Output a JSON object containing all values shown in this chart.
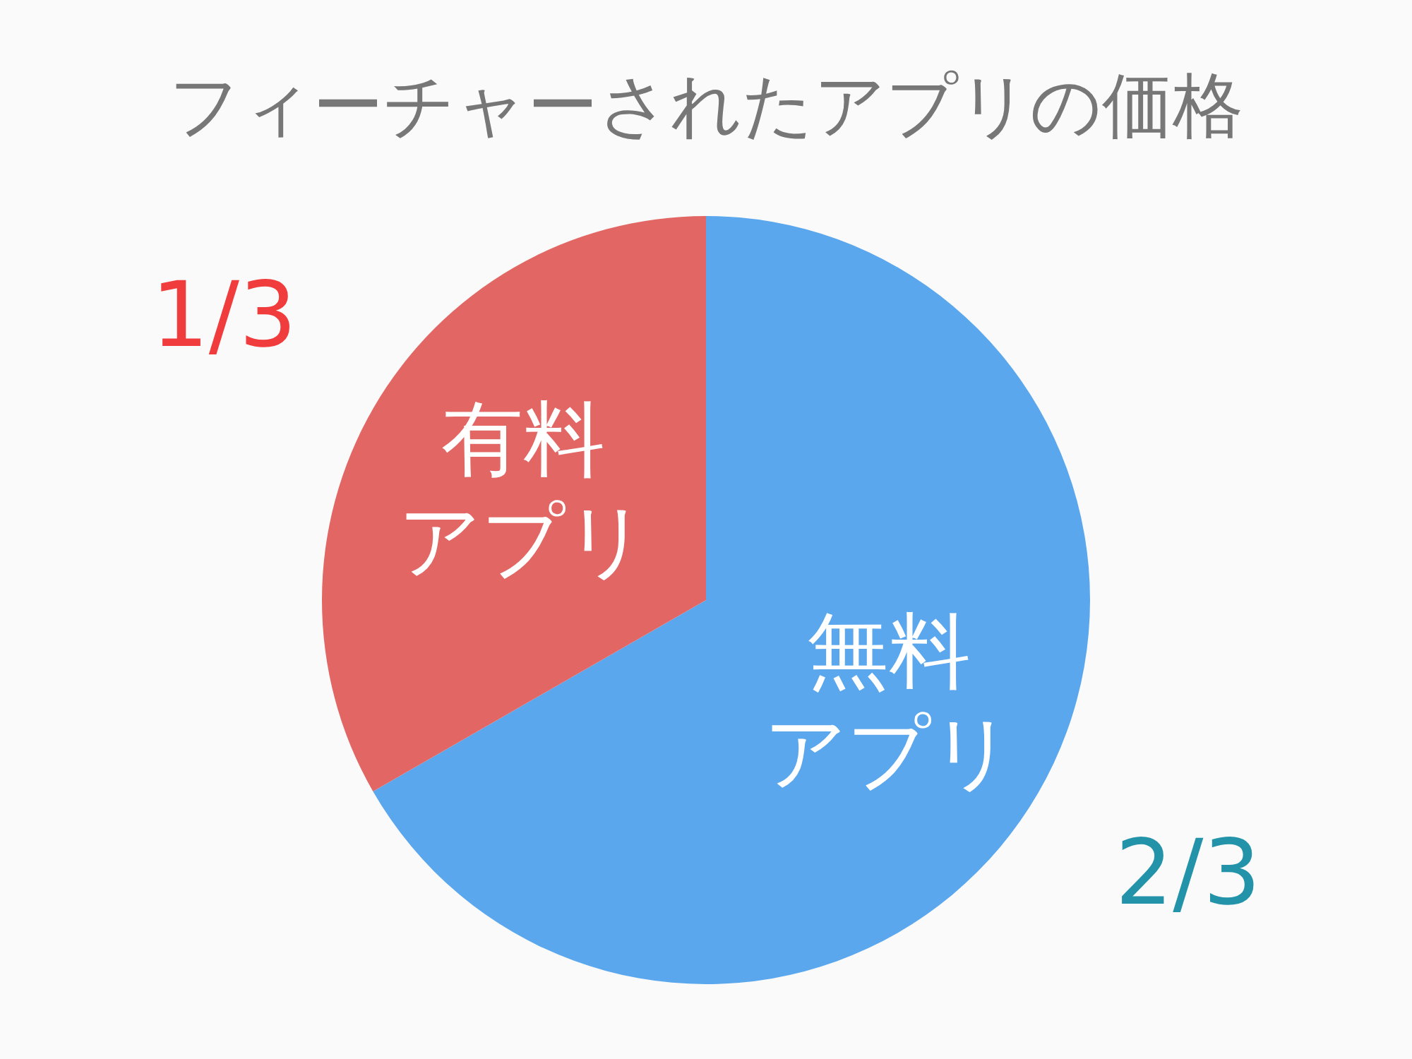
{
  "chart_data": {
    "type": "pie",
    "title": "フィーチャーされたアプリの価格",
    "categories": [
      "無料アプリ",
      "有料アプリ"
    ],
    "values": [
      0.667,
      0.333
    ],
    "value_labels": [
      "2/3",
      "1/3"
    ],
    "colors": [
      "#5aa7ee",
      "#e26663"
    ]
  }
}
